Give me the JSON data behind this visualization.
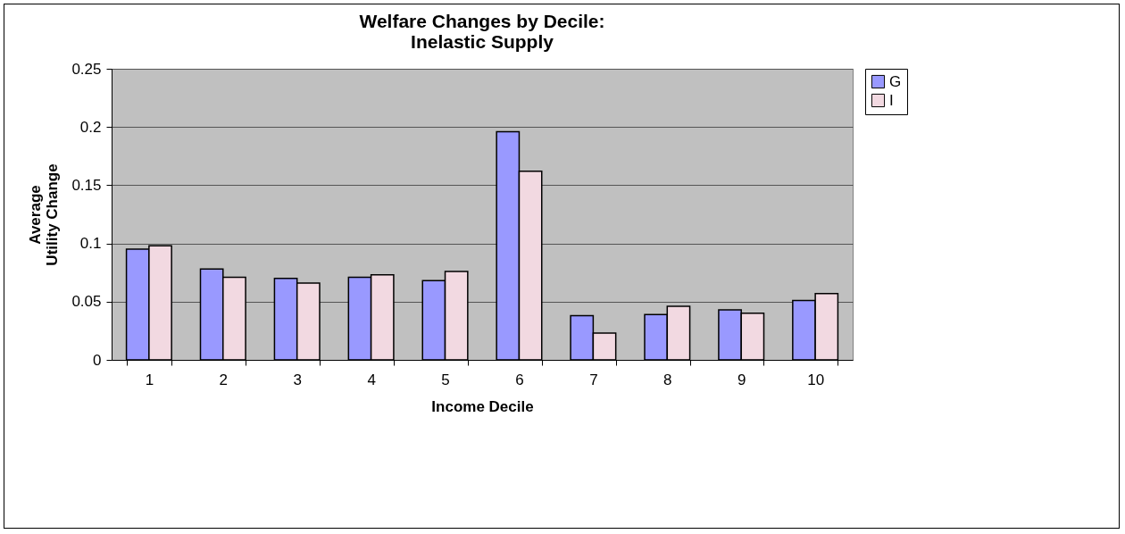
{
  "chart_data": {
    "type": "bar",
    "title": "Welfare Changes by Decile:\nInelastic Supply",
    "xlabel": "Income Decile",
    "ylabel": "Average\nUtility Change",
    "categories": [
      "1",
      "2",
      "3",
      "4",
      "5",
      "6",
      "7",
      "8",
      "9",
      "10"
    ],
    "series": [
      {
        "name": "G",
        "color": "#9999ff",
        "values": [
          0.095,
          0.078,
          0.07,
          0.071,
          0.068,
          0.196,
          0.038,
          0.039,
          0.043,
          0.051
        ]
      },
      {
        "name": "I",
        "color": "#f2d9e1",
        "values": [
          0.098,
          0.071,
          0.066,
          0.073,
          0.076,
          0.162,
          0.023,
          0.046,
          0.04,
          0.057
        ]
      }
    ],
    "ylim": [
      0,
      0.25
    ],
    "yticks": [
      0,
      0.05,
      0.1,
      0.15,
      0.2,
      0.25
    ],
    "grid": "y",
    "legend": "right"
  }
}
